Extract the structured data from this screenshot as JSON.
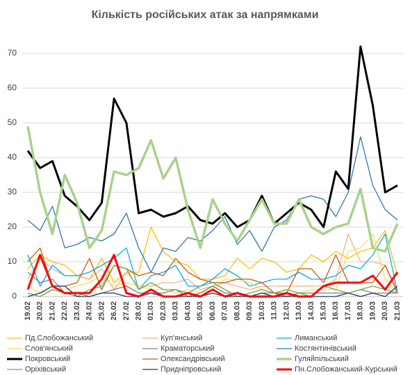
{
  "chart_data": {
    "type": "line",
    "title": "Кількість російських атак за напрямками",
    "categories": [
      "19.02",
      "20.02",
      "21.02",
      "22.02",
      "23.02",
      "24.02",
      "25.02",
      "26.02",
      "27.02",
      "28.02",
      "01.03",
      "02.03",
      "03.03",
      "04.03",
      "05.03",
      "06.03",
      "07.03",
      "08.03",
      "09.03",
      "10.03",
      "11.03",
      "12.03",
      "13.03",
      "14.03",
      "15.03",
      "16.03",
      "17.03",
      "18.03",
      "19.03",
      "20.03",
      "21.03"
    ],
    "ylim": [
      0,
      75
    ],
    "yticks": [
      0,
      10,
      20,
      30,
      40,
      50,
      60,
      70
    ],
    "grid": true,
    "series": [
      {
        "name": "Пд.Слобожанський",
        "color": "#ffc000",
        "linewidth": 1.3,
        "values": [
          8,
          12,
          10,
          9,
          6,
          5,
          11,
          4,
          7,
          7,
          20,
          13,
          10,
          9,
          5,
          5,
          6,
          11,
          8,
          11,
          10,
          7,
          8,
          12,
          10,
          13,
          11,
          13,
          14,
          19,
          6
        ]
      },
      {
        "name": "Куп'янський",
        "color": "#f4b183",
        "linewidth": 1.3,
        "values": [
          5,
          11,
          8,
          6,
          6,
          5,
          8,
          2,
          7,
          3,
          3,
          4,
          4,
          5,
          2,
          3,
          4,
          3,
          2,
          3,
          3,
          3,
          3,
          3,
          3,
          5,
          18,
          10,
          10,
          9,
          2
        ]
      },
      {
        "name": "Лиманський",
        "color": "#00b0f0",
        "linewidth": 1.3,
        "values": [
          12,
          3,
          9,
          6,
          6,
          7,
          9,
          11,
          14,
          2,
          6,
          7,
          9,
          3,
          3,
          5,
          8,
          6,
          3,
          4,
          5,
          5,
          7,
          5,
          5,
          6,
          9,
          8,
          12,
          18,
          1
        ]
      },
      {
        "name": "Слов'янський",
        "color": "#ffd966",
        "linewidth": 1.3,
        "values": [
          3,
          1,
          2,
          2,
          3,
          4,
          6,
          3,
          4,
          3,
          2,
          2,
          1,
          2,
          1,
          2,
          5,
          5,
          4,
          2,
          1,
          2,
          1,
          2,
          2,
          2,
          13,
          14,
          18,
          5,
          1
        ]
      },
      {
        "name": "Краматорський",
        "color": "#7f7f7f",
        "linewidth": 1.3,
        "values": [
          7,
          4,
          5,
          1,
          1,
          0,
          1,
          2,
          3,
          1,
          1,
          1,
          2,
          0,
          1,
          3,
          1,
          1,
          0,
          1,
          1,
          0,
          1,
          1,
          1,
          1,
          1,
          2,
          1,
          1,
          1
        ]
      },
      {
        "name": "Костянтинівський",
        "color": "#2e75b6",
        "linewidth": 1.3,
        "values": [
          22,
          19,
          26,
          14,
          15,
          17,
          16,
          18,
          24,
          14,
          7,
          14,
          13,
          17,
          16,
          19,
          23,
          15,
          19,
          13,
          20,
          22,
          28,
          29,
          28,
          23,
          30,
          46,
          32,
          25,
          22
        ]
      },
      {
        "name": "Покровський",
        "color": "#000000",
        "linewidth": 3,
        "values": [
          42,
          37,
          39,
          29,
          26,
          22,
          27,
          57,
          50,
          24,
          25,
          23,
          24,
          26,
          22,
          21,
          24,
          20,
          22,
          29,
          21,
          24,
          27,
          25,
          20,
          36,
          31,
          72,
          55,
          30,
          32
        ]
      },
      {
        "name": "Олександрівський",
        "color": "#c55a11",
        "linewidth": 1.3,
        "values": [
          10,
          14,
          3,
          3,
          4,
          11,
          2,
          9,
          8,
          6,
          7,
          6,
          11,
          7,
          5,
          4,
          4,
          5,
          5,
          4,
          1,
          1,
          8,
          8,
          4,
          12,
          4,
          4,
          4,
          9,
          1
        ]
      },
      {
        "name": "Гуляйпільський",
        "color": "#a9d18e",
        "linewidth": 3.5,
        "values": [
          49,
          30,
          18,
          35,
          27,
          14,
          19,
          36,
          35,
          37,
          45,
          34,
          40,
          25,
          14,
          28,
          21,
          16,
          22,
          28,
          21,
          21,
          28,
          20,
          18,
          20,
          21,
          31,
          14,
          13,
          21
        ]
      },
      {
        "name": "Оріхівський",
        "color": "#70ad47",
        "linewidth": 1.3,
        "values": [
          1,
          0,
          2,
          1,
          0,
          2,
          3,
          9,
          8,
          2,
          4,
          2,
          2,
          1,
          3,
          4,
          2,
          0,
          1,
          2,
          1,
          2,
          1,
          0,
          3,
          2,
          1,
          2,
          3,
          2,
          1
        ]
      },
      {
        "name": "Придніпровський",
        "color": "#1f3864",
        "linewidth": 1.3,
        "values": [
          0,
          1,
          3,
          3,
          0,
          0,
          1,
          1,
          0,
          0,
          1,
          0,
          0,
          0,
          0,
          1,
          0,
          0,
          0,
          1,
          0,
          0,
          0,
          0,
          0,
          0,
          1,
          0,
          1,
          0,
          3
        ]
      },
      {
        "name": "Пн.Слобожанський-Курський",
        "color": "#ff0000",
        "linewidth": 3,
        "values": [
          2,
          12,
          3,
          1,
          1,
          1,
          5,
          12,
          1,
          0,
          2,
          0,
          0,
          1,
          0,
          2,
          0,
          1,
          0,
          0,
          0,
          1,
          0,
          0,
          3,
          4,
          4,
          4,
          6,
          2,
          7
        ]
      }
    ]
  }
}
